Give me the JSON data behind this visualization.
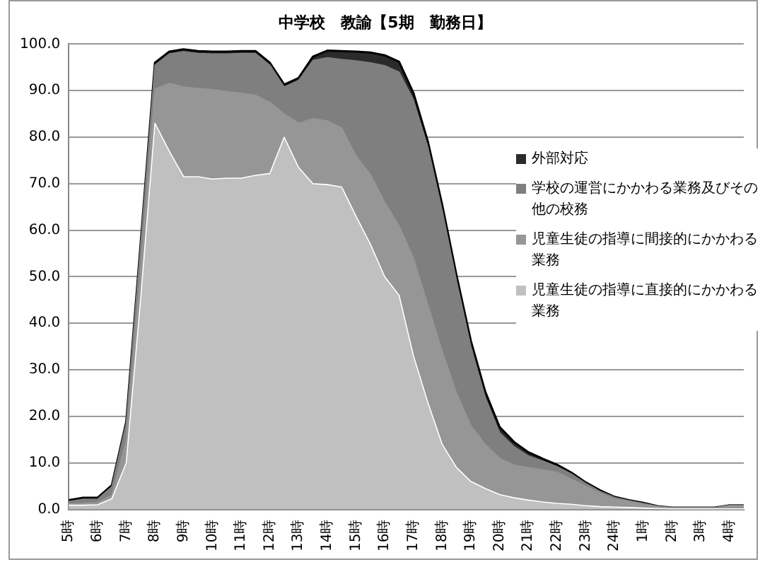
{
  "chart_data": {
    "type": "area",
    "title": "中学校　教諭【5期　勤務日】",
    "stacked": true,
    "legend": "right",
    "grid": "y",
    "categories": [
      "5時",
      null,
      "6時",
      null,
      "7時",
      null,
      "8時",
      null,
      "9時",
      null,
      "10時",
      null,
      "11時",
      null,
      "12時",
      null,
      "13時",
      null,
      "14時",
      null,
      "15時",
      null,
      "16時",
      null,
      "17時",
      null,
      "18時",
      null,
      "19時",
      null,
      "20時",
      null,
      "21時",
      null,
      "22時",
      null,
      "23時",
      null,
      "24時",
      null,
      "1時",
      null,
      "2時",
      null,
      "3時",
      null,
      "4時",
      null
    ],
    "ylim": [
      0,
      100
    ],
    "yticks": [
      {
        "value": 0,
        "label": "0.0"
      },
      {
        "value": 10,
        "label": "10.0"
      },
      {
        "value": 20,
        "label": "20.0"
      },
      {
        "value": 30,
        "label": "30.0"
      },
      {
        "value": 40,
        "label": "40.0"
      },
      {
        "value": 50,
        "label": "50.0"
      },
      {
        "value": 60,
        "label": "60.0"
      },
      {
        "value": 70,
        "label": "70.0"
      },
      {
        "value": 80,
        "label": "80.0"
      },
      {
        "value": 90,
        "label": "90.0"
      },
      {
        "value": 100,
        "label": "100.0"
      }
    ],
    "series": [
      {
        "name": "児童生徒の指導に直接的にかかわる業務",
        "color": "#c0c0c0",
        "values": [
          0.9,
          0.9,
          1.0,
          2.3,
          10,
          45,
          83,
          77,
          71.5,
          71.5,
          71,
          71.2,
          71.2,
          71.8,
          72.2,
          80,
          73.5,
          70,
          69.8,
          69.3,
          63,
          57,
          50,
          46,
          33,
          23,
          14,
          9,
          6,
          4.5,
          3.2,
          2.5,
          2,
          1.6,
          1.3,
          1.1,
          0.8,
          0.6,
          0.5,
          0.4,
          0.3,
          0.2,
          0.1,
          0.1,
          0.1,
          0.1,
          0.1,
          0.1
        ]
      },
      {
        "name": "児童生徒の指導に間接的にかかわる業務",
        "color": "#969696",
        "values": [
          0.3,
          0.4,
          0.5,
          0.7,
          5,
          7,
          7.3,
          14.6,
          19.3,
          19,
          19.2,
          18.6,
          18.3,
          17.2,
          15.3,
          5,
          9.5,
          14,
          13.7,
          12.7,
          13,
          15,
          16,
          15,
          21,
          21,
          20,
          16,
          12,
          9.5,
          7.8,
          7,
          7,
          6.9,
          6.7,
          5.4,
          4.2,
          2.9,
          1.7,
          1.3,
          0.8,
          0.4,
          0.2,
          0.2,
          0.2,
          0.2,
          0.6,
          0.6
        ]
      },
      {
        "name": "学校の運営にかかわる業務及びその他の校務",
        "color": "#7f7f7f",
        "values": [
          0.5,
          0.9,
          0.7,
          1.9,
          3.5,
          4.7,
          5.2,
          6.3,
          7.6,
          7.5,
          7.7,
          8.1,
          8.5,
          9,
          8,
          5.8,
          9.2,
          12.5,
          13.6,
          14.7,
          20.4,
          24,
          29.4,
          33,
          34,
          33.9,
          30.3,
          24.1,
          17,
          10.1,
          5.5,
          4,
          2.5,
          1.9,
          1.2,
          1.1,
          0.6,
          0.4,
          0.4,
          0.2,
          0.2,
          0.1,
          0.1,
          0.1,
          0.1,
          0.1,
          0.2,
          0.2
        ]
      },
      {
        "name": "外部対応",
        "color": "#2b2b2b",
        "values": [
          0.3,
          0.3,
          0.3,
          0.3,
          0.3,
          0.3,
          0.5,
          0.5,
          0.5,
          0.5,
          0.5,
          0.5,
          0.5,
          0.5,
          0.5,
          0.5,
          0.5,
          0.8,
          1.5,
          1.8,
          2.0,
          2.2,
          2.2,
          2.2,
          1.5,
          1.2,
          1.2,
          1.2,
          1.2,
          1.2,
          1.2,
          1.0,
          0.8,
          0.5,
          0.4,
          0.3,
          0.2,
          0.2,
          0.1,
          0.1,
          0.1,
          0,
          0,
          0,
          0,
          0,
          0,
          0
        ]
      }
    ]
  }
}
